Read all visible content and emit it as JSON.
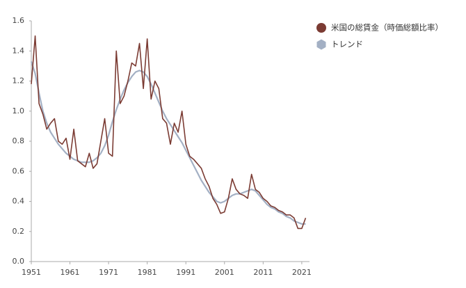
{
  "chart_data": {
    "type": "line",
    "x": [
      1951,
      1952,
      1953,
      1954,
      1955,
      1956,
      1957,
      1958,
      1959,
      1960,
      1961,
      1962,
      1963,
      1964,
      1965,
      1966,
      1967,
      1968,
      1969,
      1970,
      1971,
      1972,
      1973,
      1974,
      1975,
      1976,
      1977,
      1978,
      1979,
      1980,
      1981,
      1982,
      1983,
      1984,
      1985,
      1986,
      1987,
      1988,
      1989,
      1990,
      1991,
      1992,
      1993,
      1994,
      1995,
      1996,
      1997,
      1998,
      1999,
      2000,
      2001,
      2002,
      2003,
      2004,
      2005,
      2006,
      2007,
      2008,
      2009,
      2010,
      2011,
      2012,
      2013,
      2014,
      2015,
      2016,
      2017,
      2018,
      2019,
      2020,
      2021,
      2022
    ],
    "series": [
      {
        "name": "米国の総賃金（時価総額比率）",
        "color": "#7b3b33",
        "values": [
          1.18,
          1.5,
          1.05,
          0.98,
          0.88,
          0.92,
          0.95,
          0.8,
          0.78,
          0.82,
          0.68,
          0.88,
          0.67,
          0.65,
          0.63,
          0.72,
          0.62,
          0.65,
          0.8,
          0.95,
          0.72,
          0.7,
          1.4,
          1.05,
          1.1,
          1.2,
          1.32,
          1.3,
          1.45,
          1.15,
          1.48,
          1.08,
          1.2,
          1.15,
          0.95,
          0.92,
          0.78,
          0.92,
          0.86,
          1.0,
          0.78,
          0.7,
          0.68,
          0.65,
          0.62,
          0.55,
          0.5,
          0.42,
          0.38,
          0.32,
          0.33,
          0.42,
          0.55,
          0.48,
          0.45,
          0.44,
          0.42,
          0.58,
          0.48,
          0.46,
          0.42,
          0.4,
          0.37,
          0.36,
          0.34,
          0.33,
          0.31,
          0.31,
          0.29,
          0.22,
          0.22,
          0.29
        ]
      },
      {
        "name": "トレンド",
        "color": "#a3b0c4",
        "values": [
          1.33,
          1.25,
          1.12,
          1.0,
          0.92,
          0.86,
          0.82,
          0.78,
          0.75,
          0.72,
          0.7,
          0.68,
          0.67,
          0.66,
          0.66,
          0.66,
          0.67,
          0.69,
          0.72,
          0.77,
          0.84,
          0.93,
          1.01,
          1.08,
          1.14,
          1.19,
          1.23,
          1.26,
          1.27,
          1.26,
          1.23,
          1.18,
          1.12,
          1.06,
          1.0,
          0.95,
          0.91,
          0.87,
          0.83,
          0.79,
          0.74,
          0.69,
          0.64,
          0.59,
          0.54,
          0.5,
          0.46,
          0.43,
          0.4,
          0.39,
          0.4,
          0.42,
          0.44,
          0.45,
          0.45,
          0.46,
          0.47,
          0.48,
          0.47,
          0.44,
          0.41,
          0.38,
          0.36,
          0.35,
          0.33,
          0.32,
          0.3,
          0.29,
          0.27,
          0.26,
          0.25,
          0.25
        ]
      }
    ],
    "xlim": [
      1951,
      2023
    ],
    "xticks": [
      1951,
      1961,
      1971,
      1981,
      1991,
      2001,
      2011,
      2021
    ],
    "ylim": [
      0,
      1.6
    ],
    "yticks": [
      {
        "value": 0,
        "label": "0.0"
      },
      0.2,
      0.4,
      0.6,
      0.8,
      {
        "value": 1,
        "label": "1.0"
      },
      1.2,
      1.4,
      1.6
    ],
    "grid": false,
    "legend": "right"
  }
}
